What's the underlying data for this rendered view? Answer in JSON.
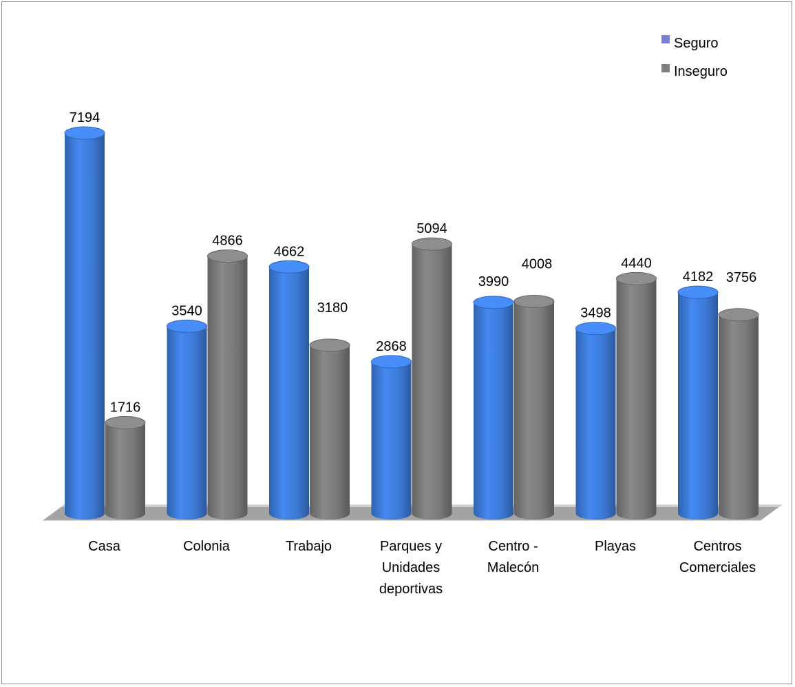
{
  "chart_data": {
    "type": "bar",
    "style": "3d-cylinder",
    "title": "",
    "xlabel": "",
    "ylabel": "",
    "ylim": [
      0,
      7500
    ],
    "grid": false,
    "legend_position": "top-right",
    "categories": [
      [
        "Casa"
      ],
      [
        "Colonia"
      ],
      [
        "Trabajo"
      ],
      [
        "Parques y",
        "Unidades",
        "deportivas"
      ],
      [
        "Centro -",
        "Malecón"
      ],
      [
        "Playas"
      ],
      [
        "Centros",
        "Comerciales"
      ]
    ],
    "series": [
      {
        "name": "Seguro",
        "color": "#3f7fe0",
        "values": [
          7194,
          3540,
          4662,
          2868,
          3990,
          3498,
          4182
        ]
      },
      {
        "name": "Inseguro",
        "color": "#7f7f7f",
        "values": [
          1716,
          4866,
          3180,
          5094,
          4008,
          4440,
          3756
        ]
      }
    ],
    "legend_swatch_colors": [
      "#7b7fd8",
      "#7f7f7f"
    ]
  }
}
